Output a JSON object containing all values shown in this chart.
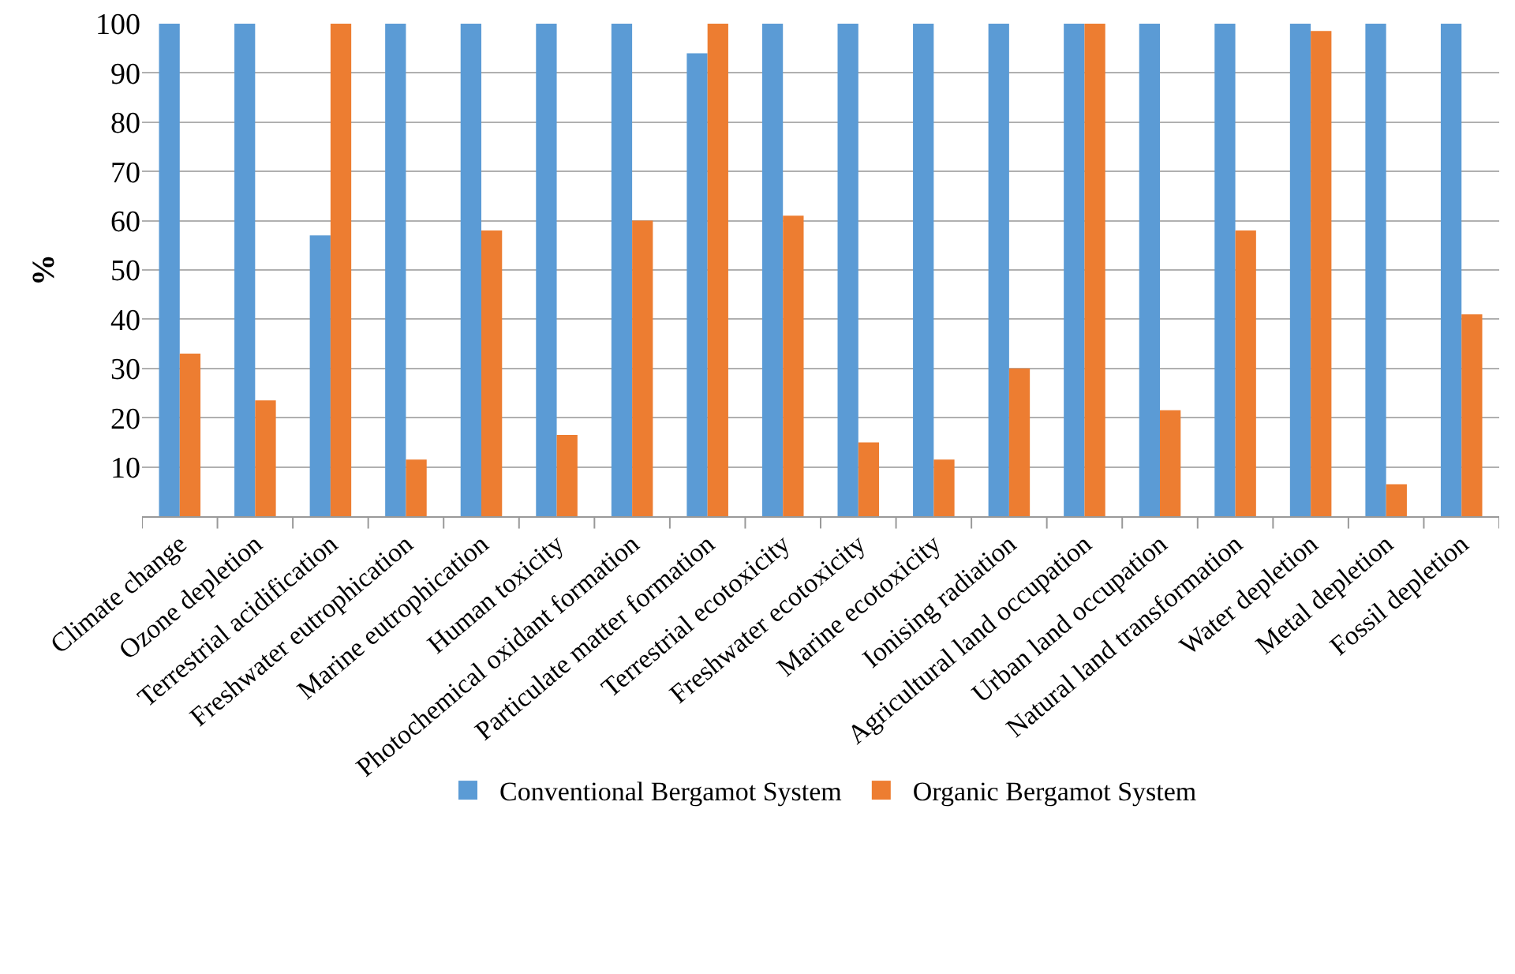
{
  "chart_data": {
    "type": "bar",
    "ylabel": "%",
    "categories": [
      "Climate change",
      "Ozone depletion",
      "Terrestrial acidification",
      "Freshwater eutrophication",
      "Marine eutrophication",
      "Human toxicity",
      "Photochemical oxidant formation",
      "Particulate matter formation",
      "Terrestrial ecotoxicity",
      "Freshwater ecotoxicity",
      "Marine ecotoxicity",
      "Ionising radiation",
      "Agricultural land occupation",
      "Urban land occupation",
      "Natural land transformation",
      "Water depletion",
      "Metal depletion",
      "Fossil depletion"
    ],
    "series": [
      {
        "name": "Conventional Bergamot System",
        "color": "#5b9bd5",
        "values": [
          100,
          100,
          57,
          100,
          100,
          100,
          100,
          94,
          100,
          100,
          100,
          100,
          100,
          100,
          100,
          100,
          100,
          100
        ]
      },
      {
        "name": "Organic Bergamot System",
        "color": "#ed7d31",
        "values": [
          33,
          23.5,
          100,
          11.5,
          58,
          16.5,
          60,
          100,
          61,
          15,
          11.5,
          30,
          100,
          21.5,
          58,
          98.5,
          6.5,
          41
        ]
      }
    ],
    "ylim": [
      0,
      100
    ],
    "yticks": [
      10,
      20,
      30,
      40,
      50,
      60,
      70,
      80,
      90,
      100
    ],
    "grid": "y",
    "legend": "bottom"
  }
}
